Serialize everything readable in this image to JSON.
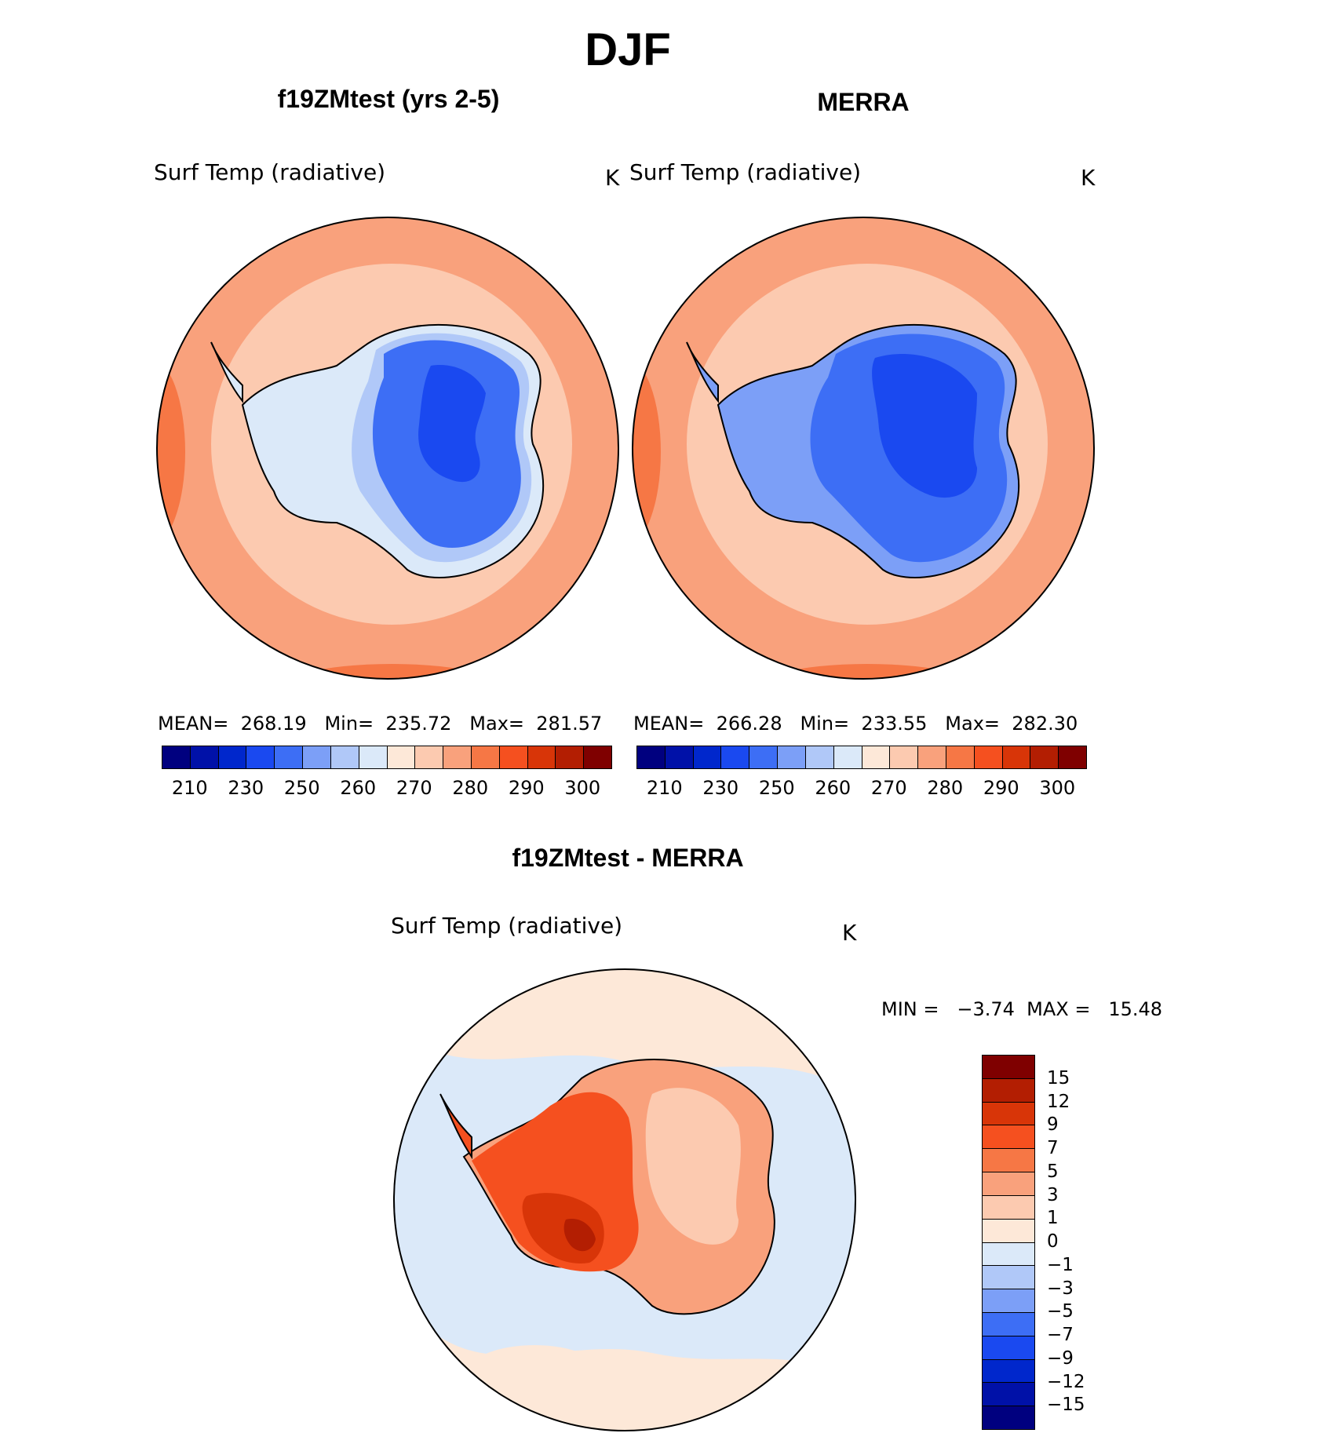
{
  "figure": {
    "title": "DJF",
    "panels": [
      {
        "id": "model",
        "title": "f19ZMtest (yrs 2-5)",
        "label": "Surf Temp (radiative)",
        "units": "K",
        "stats": "MEAN=  268.19   Min=  235.72   Max=  281.57",
        "mean": 268.19,
        "min": 235.72,
        "max": 281.57
      },
      {
        "id": "obs",
        "title": "MERRA",
        "label": "Surf Temp (radiative)",
        "units": "K",
        "stats": "MEAN=  266.28   Min=  233.55   Max=  282.30",
        "mean": 266.28,
        "min": 233.55,
        "max": 282.3
      },
      {
        "id": "diff",
        "title": "f19ZMtest - MERRA",
        "label": "Surf Temp (radiative)",
        "units": "K",
        "stats": "MIN =   −3.74  MAX =   15.48",
        "min": -3.74,
        "max": 15.48
      }
    ]
  },
  "colorbar_abs": {
    "colors": [
      "#00007f",
      "#0011a8",
      "#0027cc",
      "#1a49f0",
      "#3d6ef5",
      "#7c9ff7",
      "#b0c8f8",
      "#dbe9f9",
      "#fde8d8",
      "#fccab0",
      "#f9a17c",
      "#f67745",
      "#f5501f",
      "#d83508",
      "#b31e02",
      "#7f0000"
    ],
    "ticks": [
      "210",
      "230",
      "250",
      "260",
      "270",
      "280",
      "290",
      "300"
    ]
  },
  "colorbar_diff": {
    "colors": [
      "#7f0000",
      "#b31e02",
      "#d83508",
      "#f5501f",
      "#f67745",
      "#f9a17c",
      "#fccab0",
      "#fde8d8",
      "#dbe9f9",
      "#b0c8f8",
      "#7c9ff7",
      "#3d6ef5",
      "#1a49f0",
      "#0027cc",
      "#0011a8",
      "#00007f"
    ],
    "ticks": [
      "15",
      "12",
      "9",
      "7",
      "5",
      "3",
      "1",
      "0",
      "−1",
      "−3",
      "−5",
      "−7",
      "−9",
      "−12",
      "−15"
    ]
  }
}
